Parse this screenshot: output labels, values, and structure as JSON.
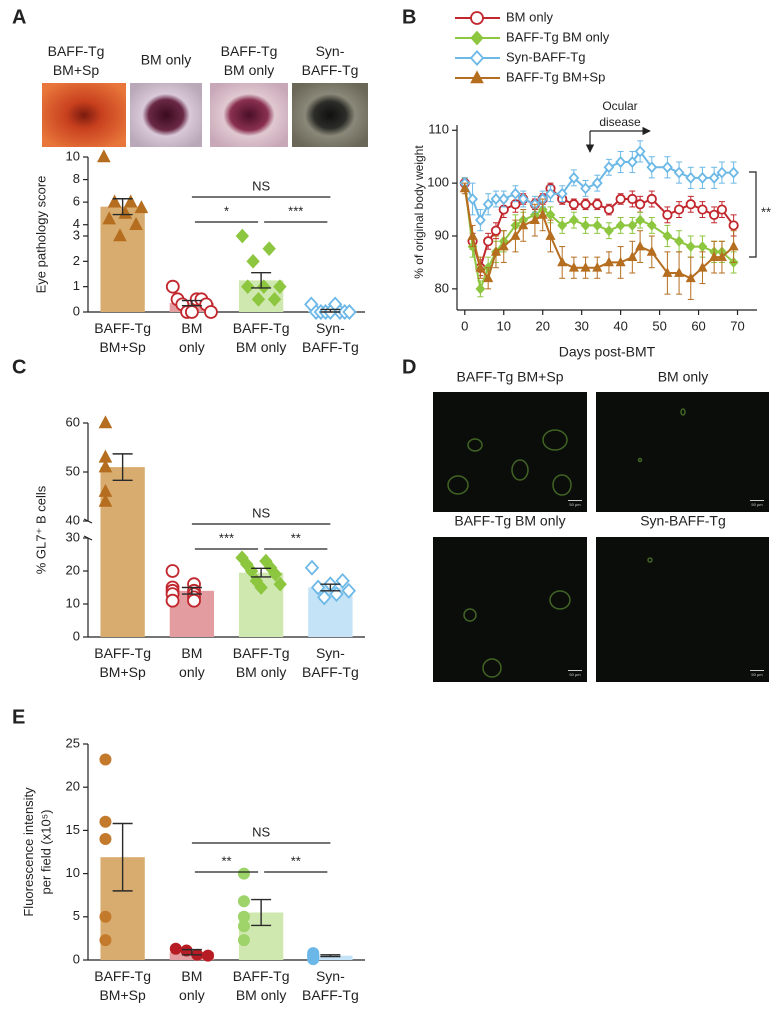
{
  "chart_data": [
    {
      "panel": "A",
      "type": "bar",
      "photo_labels": [
        "BAFF-Tg\nBM+Sp",
        "BM only",
        "BAFF-Tg\nBM only",
        "Syn-\nBAFF-Tg"
      ],
      "y_label": "Eye pathology score",
      "categories": [
        "BAFF-Tg\nBM+Sp",
        "BM\nonly",
        "BAFF-Tg\nBM only",
        "Syn-\nBAFF-Tg"
      ],
      "values": [
        5.6,
        0.35,
        1.25,
        0.05
      ],
      "errors": [
        0.7,
        0.1,
        0.3,
        0.05
      ],
      "points": [
        [
          10,
          6,
          6,
          5.5,
          5,
          4.5,
          4,
          3
        ],
        [
          1,
          0.5,
          0.5,
          0.5,
          0.3,
          0.3,
          0,
          0,
          0
        ],
        [
          3,
          2.5,
          2,
          1,
          1,
          1,
          0.5,
          0.5
        ],
        [
          0.3,
          0.3,
          0,
          0,
          0,
          0,
          0,
          0,
          0
        ]
      ],
      "colors": [
        "#d8ac6e",
        "#e39c9f",
        "#cfe8b0",
        "#c4e3f6"
      ],
      "point_colors": [
        "#b56d1f",
        "#c1272d",
        "#8dc63f",
        "#6cb8e6"
      ],
      "markers": [
        "triangle",
        "circle-open",
        "diamond",
        "diamond-open"
      ],
      "ylim": [
        0,
        10
      ],
      "ybreak": [
        3,
        3
      ],
      "yticks": [
        0,
        1,
        2,
        3,
        4,
        6,
        8,
        10
      ],
      "annotations": [
        {
          "text": "NS",
          "groups": [
            1,
            3
          ]
        },
        {
          "text": "*",
          "groups": [
            1,
            2
          ]
        },
        {
          "text": "***",
          "groups": [
            2,
            3
          ]
        }
      ]
    },
    {
      "panel": "B",
      "type": "line",
      "x_label": "Days post-BMT",
      "y_label": "% of original body weight",
      "annotation": "Ocular\ndisease",
      "significance": "**",
      "x": [
        0,
        2,
        4,
        6,
        8,
        10,
        13,
        15,
        18,
        20,
        22,
        25,
        28,
        31,
        34,
        37,
        40,
        43,
        45,
        48,
        52,
        55,
        58,
        61,
        64,
        66,
        69
      ],
      "series": [
        {
          "name": "BM only",
          "color": "#c1272d",
          "marker": "circle-open",
          "values": [
            100,
            89,
            84,
            89,
            91,
            95,
            96,
            97,
            96,
            97,
            99,
            97,
            96,
            96,
            96,
            95,
            97,
            97,
            96,
            97,
            94,
            95,
            96,
            95,
            94,
            95,
            92
          ],
          "errors": [
            1,
            1.5,
            1.5,
            1.5,
            1.5,
            1.5,
            1.5,
            1,
            1,
            1,
            1,
            1,
            1,
            1,
            1,
            1,
            1,
            1.5,
            1.5,
            1.5,
            1.5,
            1.5,
            1.5,
            1.5,
            1.5,
            1.5,
            2
          ]
        },
        {
          "name": "BAFF-Tg BM only",
          "color": "#8dc63f",
          "marker": "diamond",
          "values": [
            100,
            88,
            80,
            84,
            87,
            89,
            92,
            93,
            94,
            95,
            94,
            92,
            93,
            92,
            92,
            91,
            92,
            92,
            93,
            92,
            90,
            89,
            88,
            88,
            87,
            87,
            85
          ],
          "errors": [
            1,
            2,
            1.5,
            2,
            2,
            2,
            2,
            1.5,
            1.5,
            1.5,
            1.5,
            1.5,
            1.5,
            1.5,
            1.5,
            1.5,
            1.5,
            1.5,
            1.5,
            1.5,
            2,
            2,
            2,
            2,
            2,
            2,
            2
          ]
        },
        {
          "name": "Syn-BAFF-Tg",
          "color": "#6cb8e6",
          "marker": "diamond-open",
          "values": [
            100,
            97,
            93,
            96,
            97,
            97,
            98,
            97,
            96,
            97,
            98,
            98,
            101,
            99,
            100,
            103,
            104,
            104,
            106,
            103,
            103,
            102,
            101,
            101,
            101,
            102,
            102
          ],
          "errors": [
            1,
            3,
            2,
            2,
            1.5,
            1.5,
            1.5,
            1.5,
            1.5,
            1.5,
            1.5,
            1.5,
            1.5,
            1.5,
            1.5,
            1.5,
            2,
            2,
            2,
            2,
            2,
            2,
            2,
            2,
            2,
            2,
            2
          ]
        },
        {
          "name": "BAFF-Tg BM+Sp",
          "color": "#b56d1f",
          "marker": "triangle",
          "values": [
            99,
            90,
            84,
            82,
            87,
            88,
            90,
            92,
            93,
            94,
            90,
            85,
            84,
            84,
            84,
            85,
            85,
            86,
            88,
            87,
            83,
            83,
            82,
            84,
            86,
            86,
            88
          ],
          "errors": [
            1,
            2,
            2,
            2,
            3,
            3,
            3,
            3,
            3,
            3,
            3,
            3,
            2,
            2,
            2,
            2,
            3,
            3,
            3,
            3,
            4,
            4,
            4,
            3,
            3,
            3,
            3
          ]
        }
      ],
      "xlim": [
        -2,
        75
      ],
      "xticks": [
        0,
        10,
        20,
        30,
        40,
        50,
        60,
        70
      ],
      "ylim": [
        76,
        111
      ],
      "yticks": [
        80,
        90,
        100,
        110
      ]
    },
    {
      "panel": "C",
      "type": "bar",
      "y_label": "% GL7⁺ B cells",
      "categories": [
        "BAFF-Tg\nBM+Sp",
        "BM\nonly",
        "BAFF-Tg\nBM only",
        "Syn-\nBAFF-Tg"
      ],
      "values": [
        51,
        14,
        19.5,
        15
      ],
      "errors": [
        2.7,
        1,
        1.3,
        1
      ],
      "points": [
        [
          60,
          53,
          51,
          46,
          44
        ],
        [
          20,
          16,
          15,
          14,
          14,
          13,
          13,
          12,
          11,
          11
        ],
        [
          24,
          23,
          22,
          21,
          20,
          19,
          17,
          16,
          15
        ],
        [
          21,
          17,
          16,
          15,
          14,
          13,
          12
        ]
      ],
      "colors": [
        "#d8ac6e",
        "#e39c9f",
        "#cfe8b0",
        "#c4e3f6"
      ],
      "point_colors": [
        "#b56d1f",
        "#c1272d",
        "#8dc63f",
        "#6cb8e6"
      ],
      "markers": [
        "triangle",
        "circle-open",
        "diamond",
        "diamond-open"
      ],
      "ylim": [
        0,
        60
      ],
      "ybreak": [
        30,
        40
      ],
      "yticks": [
        0,
        10,
        20,
        30,
        40,
        50,
        60
      ],
      "annotations": [
        {
          "text": "NS",
          "groups": [
            1,
            3
          ]
        },
        {
          "text": "***",
          "groups": [
            1,
            2
          ]
        },
        {
          "text": "**",
          "groups": [
            2,
            3
          ]
        }
      ]
    },
    {
      "panel": "E",
      "type": "bar",
      "y_label": "Fluorescence intensity\nper field (x10⁵)",
      "categories": [
        "BAFF-Tg\nBM+Sp",
        "BM\nonly",
        "BAFF-Tg\nBM only",
        "Syn-\nBAFF-Tg"
      ],
      "values": [
        11.9,
        0.9,
        5.5,
        0.5
      ],
      "errors": [
        3.9,
        0.3,
        1.5,
        0.1
      ],
      "points": [
        [
          23.2,
          16,
          14,
          5,
          2.3
        ],
        [
          1.3,
          1.1,
          0.6,
          0.5
        ],
        [
          10,
          6.8,
          5,
          3.9,
          2.3
        ],
        [
          0.8,
          0.6,
          0.5,
          0.4,
          0.1
        ]
      ],
      "colors": [
        "#d8ac6e",
        "#e39c9f",
        "#cfe8b0",
        "#c4e3f6"
      ],
      "point_colors": [
        "#c47a2c",
        "#b71c24",
        "#9ed36a",
        "#6ab7e8"
      ],
      "markers": [
        "circle",
        "circle",
        "circle",
        "circle"
      ],
      "ylim": [
        0,
        25
      ],
      "yticks": [
        0,
        5,
        10,
        15,
        20,
        25
      ],
      "annotations": [
        {
          "text": "NS",
          "groups": [
            1,
            3
          ]
        },
        {
          "text": "**",
          "groups": [
            1,
            2
          ]
        },
        {
          "text": "**",
          "groups": [
            2,
            3
          ]
        }
      ]
    }
  ],
  "image_panel": {
    "panel": "D",
    "labels": [
      "BAFF-Tg BM+Sp",
      "BM only",
      "BAFF-Tg BM only",
      "Syn-BAFF-Tg"
    ],
    "scale_bars": [
      "50 µm",
      "50 µm",
      "50 µm",
      "50 µm"
    ]
  }
}
